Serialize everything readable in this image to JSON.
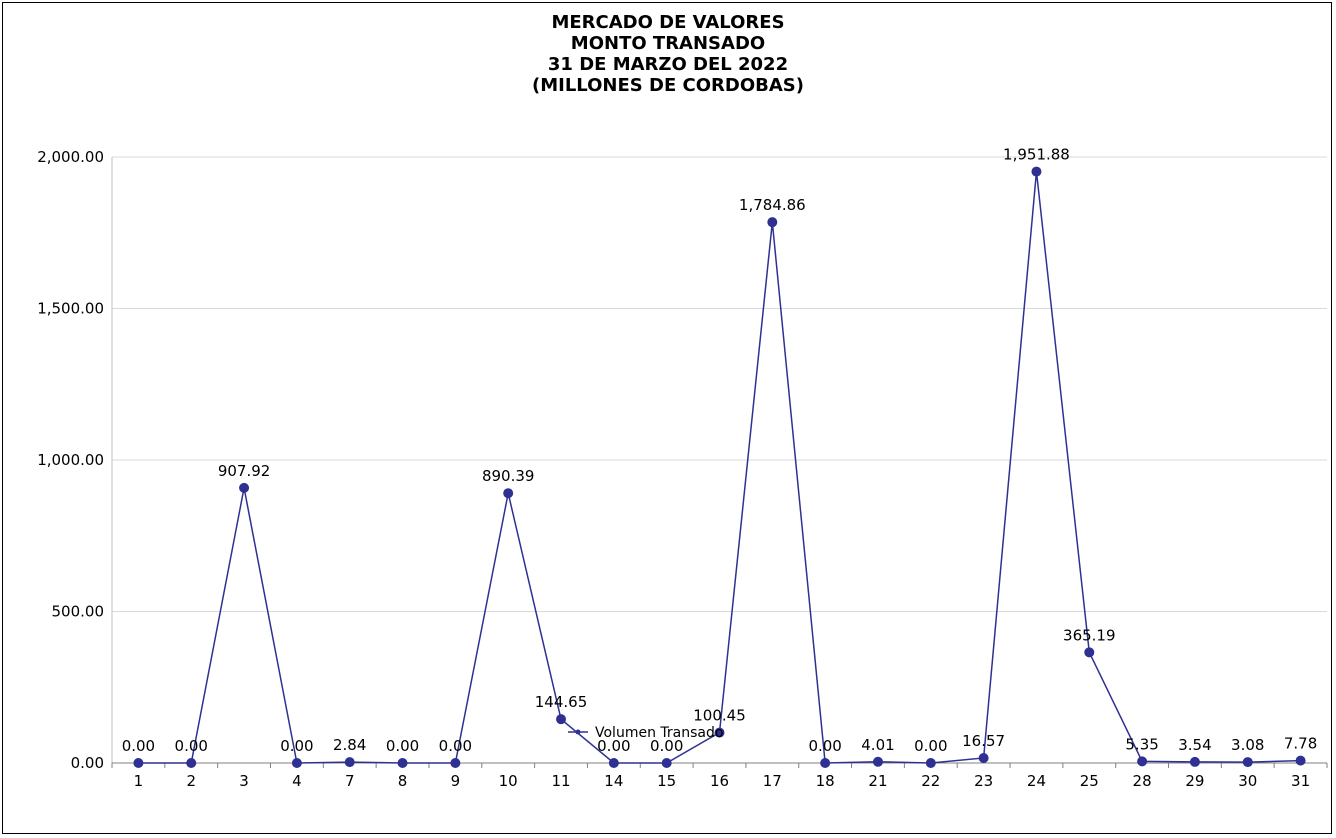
{
  "chart_data": {
    "type": "line",
    "title_lines": [
      "MERCADO DE VALORES",
      "MONTO TRANSADO",
      "31 DE MARZO DEL 2022",
      "(MILLONES DE CORDOBAS)"
    ],
    "categories": [
      "1",
      "2",
      "3",
      "4",
      "7",
      "8",
      "9",
      "10",
      "11",
      "14",
      "15",
      "16",
      "17",
      "18",
      "21",
      "22",
      "23",
      "24",
      "25",
      "28",
      "29",
      "30",
      "31"
    ],
    "series": [
      {
        "name": "Volumen Transado",
        "values": [
          0.0,
          0.0,
          907.92,
          0.0,
          2.84,
          0.0,
          0.0,
          890.39,
          144.65,
          0.0,
          0.0,
          100.45,
          1784.86,
          0.0,
          4.01,
          0.0,
          16.57,
          1951.88,
          365.19,
          5.35,
          3.54,
          3.08,
          7.78
        ],
        "labels": [
          "0.00",
          "0.00",
          "907.92",
          "0.00",
          "2.84",
          "0.00",
          "0.00",
          "890.39",
          "144.65",
          "0.00",
          "0.00",
          "100.45",
          "1,784.86",
          "0.00",
          "4.01",
          "0.00",
          "16.57",
          "1,951.88",
          "365.19",
          "5.35",
          "3.54",
          "3.08",
          "7.78"
        ],
        "color": "#2e3192"
      }
    ],
    "ylim": [
      0,
      2000
    ],
    "yticks": [
      0,
      500,
      1000,
      1500,
      2000
    ],
    "ytick_labels": [
      "0.00",
      "500.00",
      "1,000.00",
      "1,500.00",
      "2,000.00"
    ],
    "grid": true,
    "legend_position": "bottom"
  }
}
